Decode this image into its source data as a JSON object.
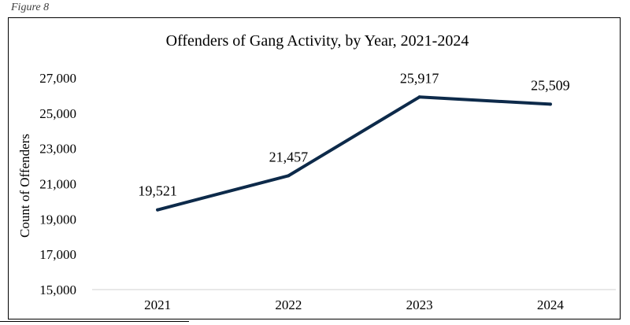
{
  "figure_label": "Figure 8",
  "chart_data": {
    "type": "line",
    "title": "Offenders of Gang Activity, by Year, 2021-2024",
    "xlabel": "",
    "ylabel": "Count of Offenders",
    "categories": [
      "2021",
      "2022",
      "2023",
      "2024"
    ],
    "series": [
      {
        "values": [
          19521,
          21457,
          25917,
          25509
        ],
        "data_labels": [
          "19,521",
          "21,457",
          "25,917",
          "25,509"
        ],
        "color": "#0d2a4a"
      }
    ],
    "ylim": [
      15000,
      27000
    ],
    "y_ticks": [
      15000,
      17000,
      19000,
      21000,
      23000,
      25000,
      27000
    ],
    "y_tick_labels": [
      "15,000",
      "17,000",
      "19,000",
      "21,000",
      "23,000",
      "25,000",
      "27,000"
    ],
    "grid": false,
    "legend": "none"
  }
}
